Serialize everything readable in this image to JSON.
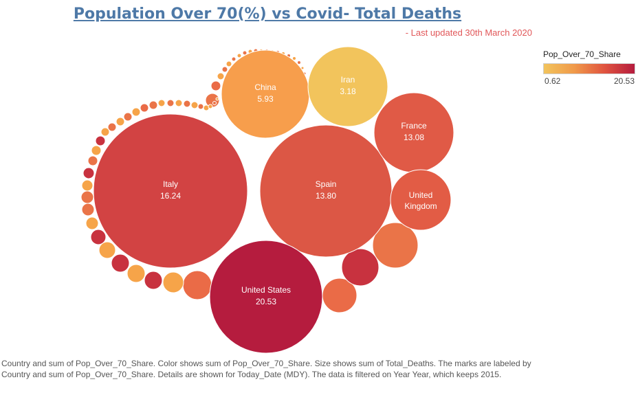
{
  "title": "Population Over 70(%) vs Covid- Total Deaths",
  "subtitle": "- Last updated 30th March 2020",
  "legend": {
    "title": "Pop_Over_70_Share",
    "min": "0.62",
    "max": "20.53"
  },
  "footer": "Country and sum of Pop_Over_70_Share.  Color shows sum of Pop_Over_70_Share.  Size shows sum of Total_Deaths.  The marks are labeled by Country and sum of Pop_Over_70_Share.  Details are shown for Today_Date (MDY). The data is filtered on Year Year, which keeps 2015.",
  "chart_data": {
    "type": "packed-bubble",
    "title": "Population Over 70(%) vs Covid- Total Deaths",
    "size_measure": "Total_Deaths",
    "color_measure": "Pop_Over_70_Share",
    "color_range": [
      0.62,
      20.53
    ],
    "labeled": [
      {
        "country": "Italy",
        "label": "Italy",
        "value": 16.24,
        "color": "#d24343"
      },
      {
        "country": "Spain",
        "label": "Spain",
        "value": 13.8,
        "color": "#dc5745"
      },
      {
        "country": "United States",
        "label": "United States",
        "value": 20.53,
        "color": "#b51c3e"
      },
      {
        "country": "China",
        "label": "China",
        "value": 5.93,
        "color": "#f79e4c"
      },
      {
        "country": "Iran",
        "label": "Iran",
        "value": 3.18,
        "color": "#f2c45c"
      },
      {
        "country": "France",
        "label": "France",
        "value": 13.08,
        "color": "#e05a46"
      },
      {
        "country": "United Kingdom",
        "label": "United Kingdom",
        "value": null,
        "color": "#e25c45"
      }
    ],
    "unlabeled_colors": [
      "#ea7448",
      "#c8323f",
      "#f6a449",
      "#ea6b47"
    ]
  }
}
